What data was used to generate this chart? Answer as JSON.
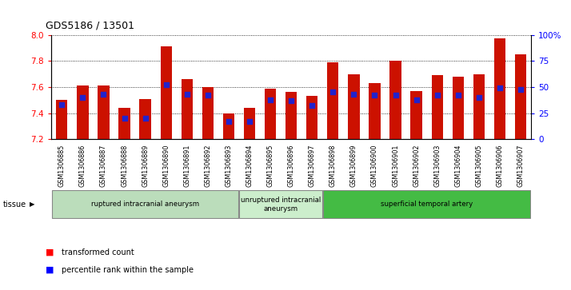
{
  "title": "GDS5186 / 13501",
  "samples": [
    "GSM1306885",
    "GSM1306886",
    "GSM1306887",
    "GSM1306888",
    "GSM1306889",
    "GSM1306890",
    "GSM1306891",
    "GSM1306892",
    "GSM1306893",
    "GSM1306894",
    "GSM1306895",
    "GSM1306896",
    "GSM1306897",
    "GSM1306898",
    "GSM1306899",
    "GSM1306900",
    "GSM1306901",
    "GSM1306902",
    "GSM1306903",
    "GSM1306904",
    "GSM1306905",
    "GSM1306906",
    "GSM1306907"
  ],
  "bar_values": [
    7.5,
    7.61,
    7.61,
    7.44,
    7.51,
    7.91,
    7.66,
    7.6,
    7.4,
    7.44,
    7.59,
    7.56,
    7.53,
    7.79,
    7.7,
    7.63,
    7.8,
    7.57,
    7.69,
    7.68,
    7.7,
    7.97,
    7.85
  ],
  "percentile_values": [
    33,
    40,
    43,
    20,
    20,
    52,
    43,
    42,
    17,
    17,
    38,
    37,
    32,
    45,
    43,
    42,
    42,
    38,
    42,
    42,
    40,
    49,
    48
  ],
  "y_min": 7.2,
  "y_max": 8.0,
  "bar_color": "#cc1100",
  "marker_color": "#2222cc",
  "groups": [
    {
      "label": "ruptured intracranial aneurysm",
      "start": 0,
      "end": 9,
      "color": "#bbddbb"
    },
    {
      "label": "unruptured intracranial\naneurysm",
      "start": 9,
      "end": 13,
      "color": "#cceecc"
    },
    {
      "label": "superficial temporal artery",
      "start": 13,
      "end": 23,
      "color": "#44bb44"
    }
  ],
  "yticks": [
    7.2,
    7.4,
    7.6,
    7.8,
    8.0
  ],
  "right_yticks": [
    0,
    25,
    50,
    75,
    100
  ],
  "right_yticklabels": [
    "0",
    "25",
    "50",
    "75",
    "100%"
  ]
}
